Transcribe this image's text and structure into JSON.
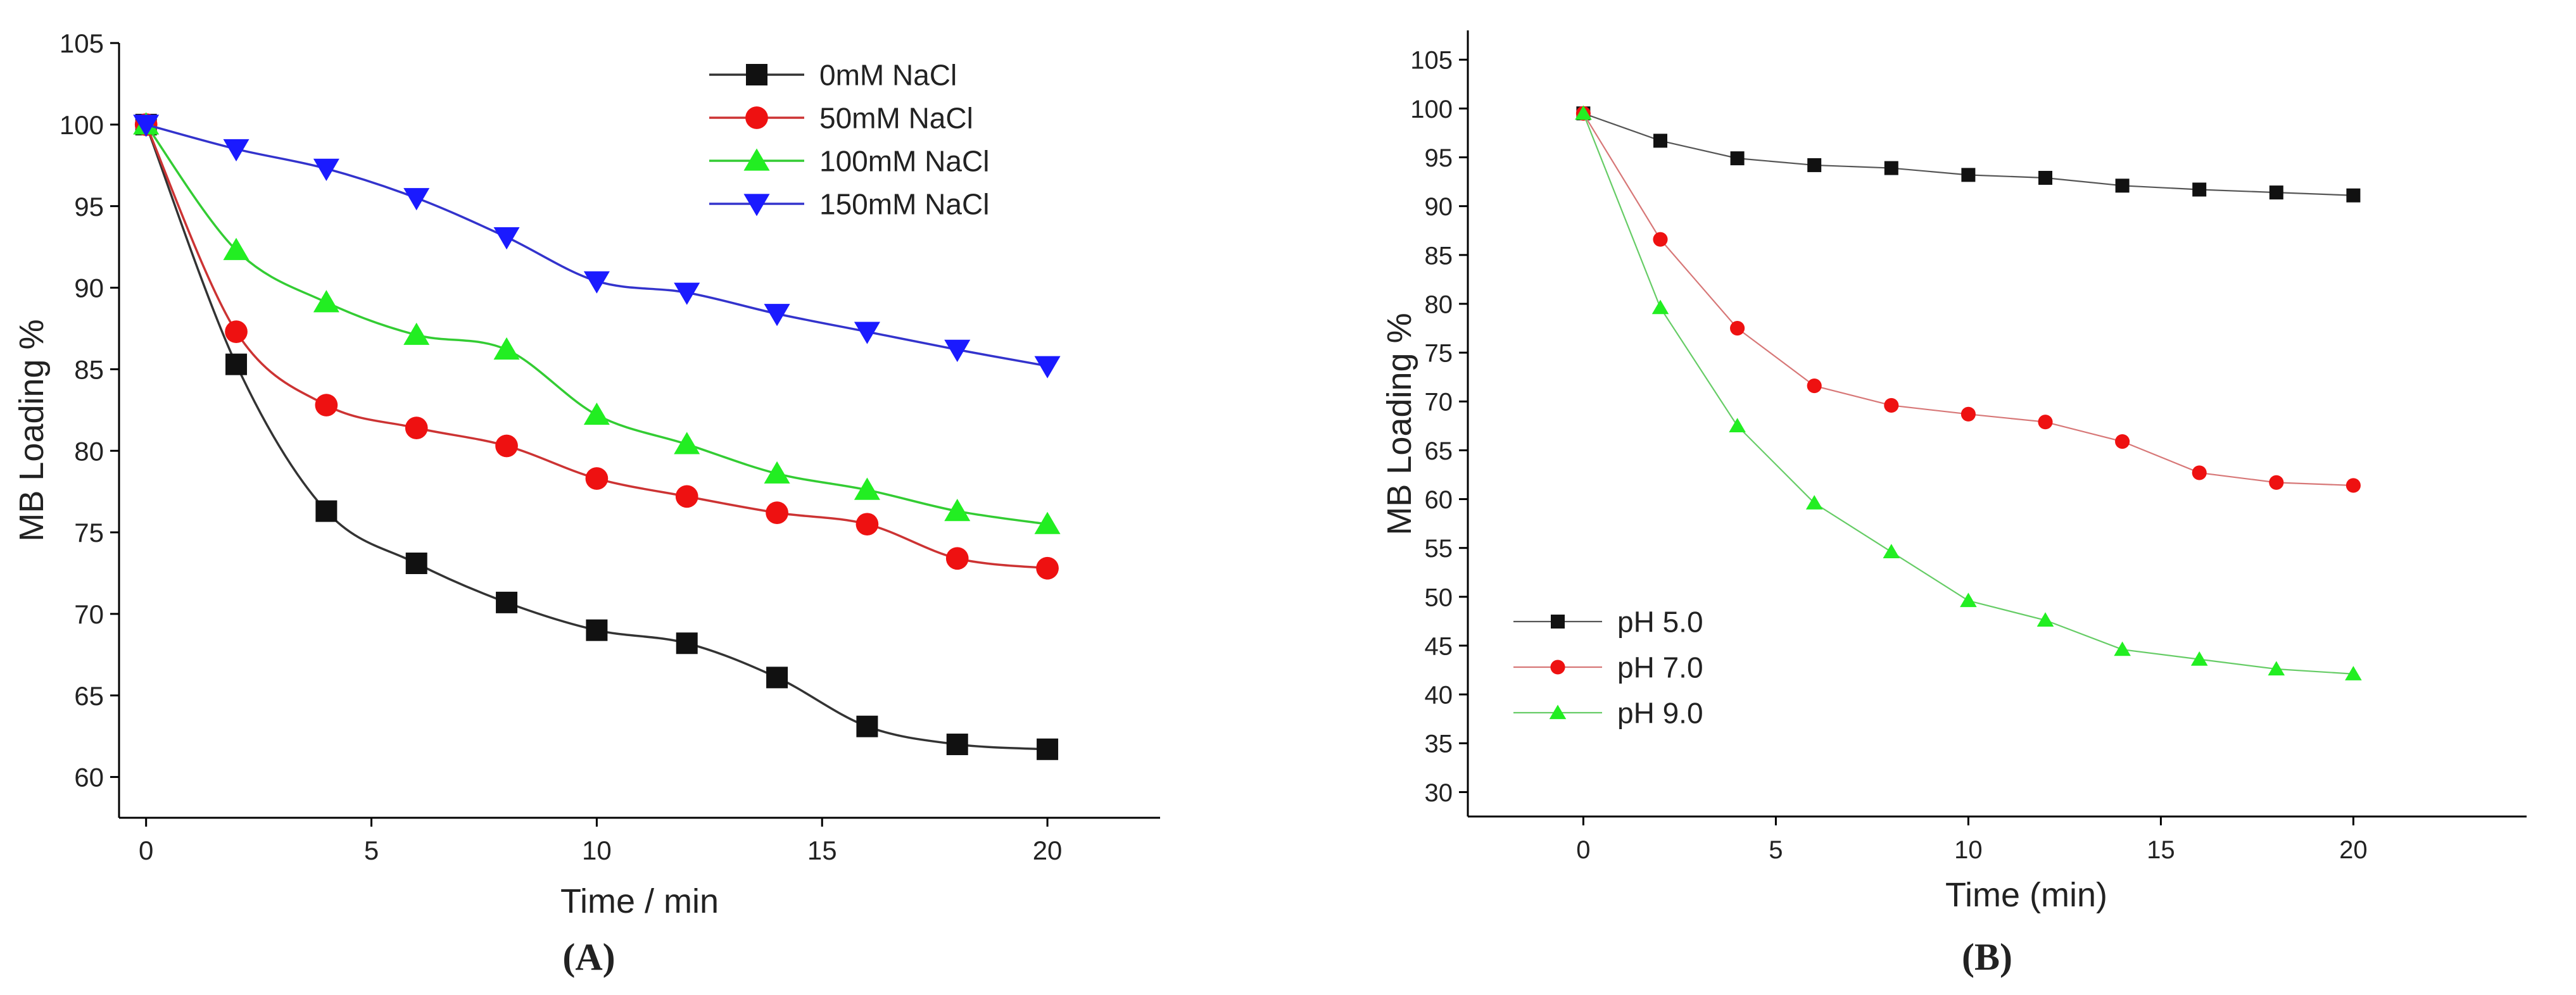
{
  "chart_data": [
    {
      "type": "line",
      "panel_label": "(A)",
      "panel_letter": "A",
      "xlabel": "Time / min",
      "ylabel": "MB Loading %",
      "xlim": [
        -0.6,
        22.5
      ],
      "ylim": [
        57.5,
        105
      ],
      "xticks": [
        0,
        5,
        10,
        15,
        20
      ],
      "yticks": [
        60,
        65,
        70,
        75,
        80,
        85,
        90,
        95,
        100,
        105
      ],
      "tick_labels_y": [
        "60",
        "65",
        "70",
        "75",
        "80",
        "85",
        "90",
        "95",
        "100",
        "105"
      ],
      "tick_labels_x": [
        "0",
        "5",
        "10",
        "15",
        "20"
      ],
      "legend_position": "top-right",
      "smooth": true,
      "x": [
        0,
        2,
        4,
        6,
        8,
        10,
        12,
        14,
        16,
        18,
        20
      ],
      "series": [
        {
          "name": "0mM NaCl",
          "color": "#111111",
          "line_color": "#333333",
          "marker": "square",
          "values": [
            100,
            85.3,
            76.3,
            73.1,
            70.7,
            69.0,
            68.2,
            66.1,
            63.1,
            62.0,
            61.7
          ]
        },
        {
          "name": "50mM NaCl",
          "color": "#ee1111",
          "line_color": "#cc3333",
          "marker": "circle",
          "values": [
            100,
            87.3,
            82.8,
            81.4,
            80.3,
            78.3,
            77.2,
            76.2,
            75.5,
            73.4,
            72.8
          ]
        },
        {
          "name": "100mM NaCl",
          "color": "#22ee22",
          "line_color": "#33cc33",
          "marker": "triangle-up",
          "values": [
            100,
            92.3,
            89.1,
            87.1,
            86.2,
            82.2,
            80.4,
            78.6,
            77.6,
            76.3,
            75.5
          ]
        },
        {
          "name": "150mM NaCl",
          "color": "#1a1aff",
          "line_color": "#3333cc",
          "marker": "triangle-down",
          "values": [
            100,
            98.5,
            97.3,
            95.5,
            93.1,
            90.4,
            89.7,
            88.4,
            87.3,
            86.2,
            85.2
          ]
        }
      ]
    },
    {
      "type": "line",
      "panel_label": "(B)",
      "panel_letter": "B",
      "xlabel": "Time (min)",
      "ylabel": "MB Loading %",
      "xlim": [
        -3,
        24.5
      ],
      "ylim": [
        27.5,
        108
      ],
      "xticks": [
        0,
        5,
        10,
        15,
        20
      ],
      "yticks": [
        30,
        35,
        40,
        45,
        50,
        55,
        60,
        65,
        70,
        75,
        80,
        85,
        90,
        95,
        100,
        105
      ],
      "tick_labels_y": [
        "30",
        "35",
        "40",
        "45",
        "50",
        "55",
        "60",
        "65",
        "70",
        "75",
        "80",
        "85",
        "90",
        "95",
        "100",
        "105"
      ],
      "tick_labels_x": [
        "0",
        "5",
        "10",
        "15",
        "20"
      ],
      "legend_position": "bottom-left",
      "smooth": false,
      "x": [
        0,
        2,
        4,
        6,
        8,
        10,
        12,
        14,
        16,
        18,
        20
      ],
      "series": [
        {
          "name": "pH 5.0",
          "color": "#111111",
          "line_color": "#555555",
          "marker": "square",
          "values": [
            99.5,
            96.7,
            94.9,
            94.2,
            93.9,
            93.2,
            92.9,
            92.1,
            91.7,
            91.4,
            91.1
          ]
        },
        {
          "name": "pH 7.0",
          "color": "#ee1111",
          "line_color": "#d77777",
          "marker": "circle",
          "values": [
            99.5,
            86.6,
            77.5,
            71.6,
            69.6,
            68.7,
            67.9,
            65.9,
            62.7,
            61.7,
            61.4
          ]
        },
        {
          "name": "pH 9.0",
          "color": "#22ee22",
          "line_color": "#66cc66",
          "marker": "triangle-up",
          "values": [
            99.5,
            79.6,
            67.5,
            59.6,
            54.6,
            49.6,
            47.6,
            44.6,
            43.6,
            42.6,
            42.1
          ]
        }
      ]
    }
  ]
}
